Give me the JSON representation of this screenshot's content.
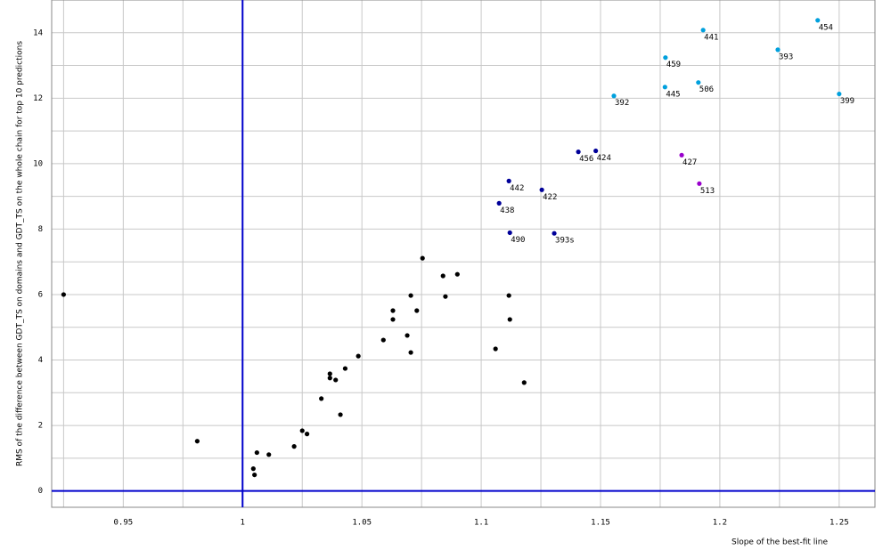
{
  "chart_data": {
    "type": "scatter",
    "x_label": "Slope of the best-fit line",
    "y_label": "RMS of the difference between GDT_TS on domains and GDT_TS on the whole chain for top 10 predictions",
    "xlim": [
      0.92,
      1.265
    ],
    "ylim": [
      -0.5,
      15
    ],
    "xticks": [
      0.95,
      1,
      1.05,
      1.1,
      1.15,
      1.2,
      1.25
    ],
    "yticks": [
      0,
      2,
      4,
      6,
      8,
      10,
      12,
      14
    ],
    "minor_xticks": [
      0.925,
      0.975,
      1.025,
      1.075,
      1.125,
      1.175,
      1.225
    ],
    "minor_yticks": [
      1,
      3,
      5,
      7,
      9,
      11,
      13
    ],
    "grid": true,
    "reference_lines": {
      "x": 1,
      "y": 0,
      "color": "#0000cc"
    },
    "series": [
      {
        "color": "#000000",
        "x": [
          0.925,
          0.981,
          1.0045,
          1.005,
          1.006,
          1.011,
          1.0216,
          1.025,
          1.027,
          1.033,
          1.0366,
          1.0366,
          1.039,
          1.041,
          1.043,
          1.0485,
          1.059,
          1.063,
          1.063,
          1.069,
          1.0705,
          1.0705,
          1.073,
          1.0754,
          1.084,
          1.085,
          1.09,
          1.106,
          1.1116,
          1.112,
          1.118
        ],
        "values": [
          6.0,
          1.52,
          0.68,
          0.49,
          1.17,
          1.11,
          1.36,
          1.84,
          1.74,
          2.82,
          3.58,
          3.45,
          3.39,
          2.33,
          3.74,
          4.12,
          4.61,
          5.51,
          5.24,
          4.75,
          4.23,
          5.97,
          5.51,
          7.11,
          6.57,
          5.94,
          6.62,
          4.34,
          5.97,
          5.24,
          3.31
        ]
      },
      {
        "color": "#000099",
        "x": [
          1.1116,
          1.1254,
          1.1075,
          1.112,
          1.1306,
          1.1407,
          1.148
        ],
        "values": [
          9.47,
          9.2,
          8.79,
          7.89,
          7.87,
          10.36,
          10.39
        ],
        "labels": [
          "442",
          "422",
          "438",
          "490",
          "393s",
          "456",
          "424"
        ]
      },
      {
        "color": "#9900cc",
        "x": [
          1.184,
          1.1914
        ],
        "values": [
          10.26,
          9.39
        ],
        "labels": [
          "427",
          "513"
        ]
      },
      {
        "color": "#00a0dd",
        "x": [
          1.1556,
          1.177,
          1.1772,
          1.193,
          1.191,
          1.2243,
          1.241,
          1.25
        ],
        "values": [
          12.07,
          12.34,
          13.24,
          14.08,
          12.48,
          13.48,
          14.38,
          12.13
        ],
        "labels": [
          "392",
          "445",
          "459",
          "441",
          "506",
          "393",
          "454",
          "399"
        ]
      }
    ]
  }
}
